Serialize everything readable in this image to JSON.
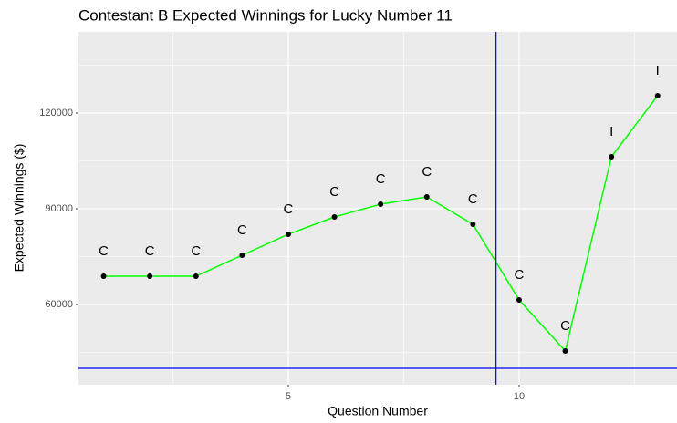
{
  "chart_data": {
    "type": "line",
    "title": "Contestant B Expected Winnings for Lucky Number 11",
    "x_label": "Question Number",
    "y_label": "Expected Winnings ($)",
    "x": [
      1,
      2,
      3,
      4,
      5,
      6,
      7,
      8,
      9,
      10,
      11,
      12,
      13
    ],
    "series": [
      {
        "name": "Expected Winnings",
        "color": "#00ff00",
        "marker_color": "#000000",
        "values": [
          68857,
          68857,
          68857,
          75429,
          82000,
          87429,
          91429,
          93714,
          85143,
          61429,
          45429,
          106286,
          125429
        ],
        "point_labels": [
          "C",
          "C",
          "C",
          "C",
          "C",
          "C",
          "C",
          "C",
          "C",
          "C",
          "C",
          "I",
          "I"
        ]
      }
    ],
    "xlim": [
      0.455,
      13.42
    ],
    "ylim": [
      34857,
      145429
    ],
    "xticks": [
      5,
      10
    ],
    "yticks": [
      60000,
      90000,
      120000
    ],
    "minor_xticks": [
      2.5,
      7.5,
      12.5
    ],
    "minor_yticks": [
      45000,
      75000,
      105000,
      135000
    ],
    "vline": 9.5,
    "hline": 40000,
    "reference_color": "#0000ff",
    "grid": true
  }
}
